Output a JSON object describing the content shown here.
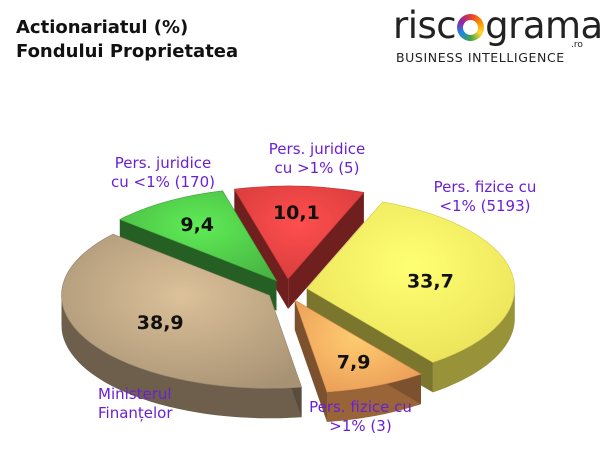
{
  "chart_data": {
    "type": "pie",
    "title_line1": "Actionariatul (%)",
    "title_line2": "Fondului Proprietatea",
    "slices": [
      {
        "label_line1": "Pers. juridice",
        "label_line2": "cu >1% (5)",
        "value": 10.1,
        "value_label": "10,1",
        "color": "#e03e3e"
      },
      {
        "label_line1": "Pers. fizice cu",
        "label_line2": "<1% (5193)",
        "value": 33.7,
        "value_label": "33,7",
        "color": "#f5ec5c"
      },
      {
        "label_line1": "Pers. fizice cu",
        "label_line2": ">1% (3)",
        "value": 7.9,
        "value_label": "7,9",
        "color": "#f6a35a"
      },
      {
        "label_line1": "Ministerul",
        "label_line2": "Finanțelor",
        "value": 38.9,
        "value_label": "38,9",
        "color": "#b09a7a"
      },
      {
        "label_line1": "Pers. juridice",
        "label_line2": "cu <1% (170)",
        "value": 9.4,
        "value_label": "9,4",
        "color": "#4cbd45"
      }
    ],
    "value_unit": "%",
    "legend": "none"
  },
  "logo": {
    "word_start": "risc",
    "word_end": "grama",
    "domain": ".ro",
    "tagline": "BUSINESS INTELLIGENCE"
  }
}
